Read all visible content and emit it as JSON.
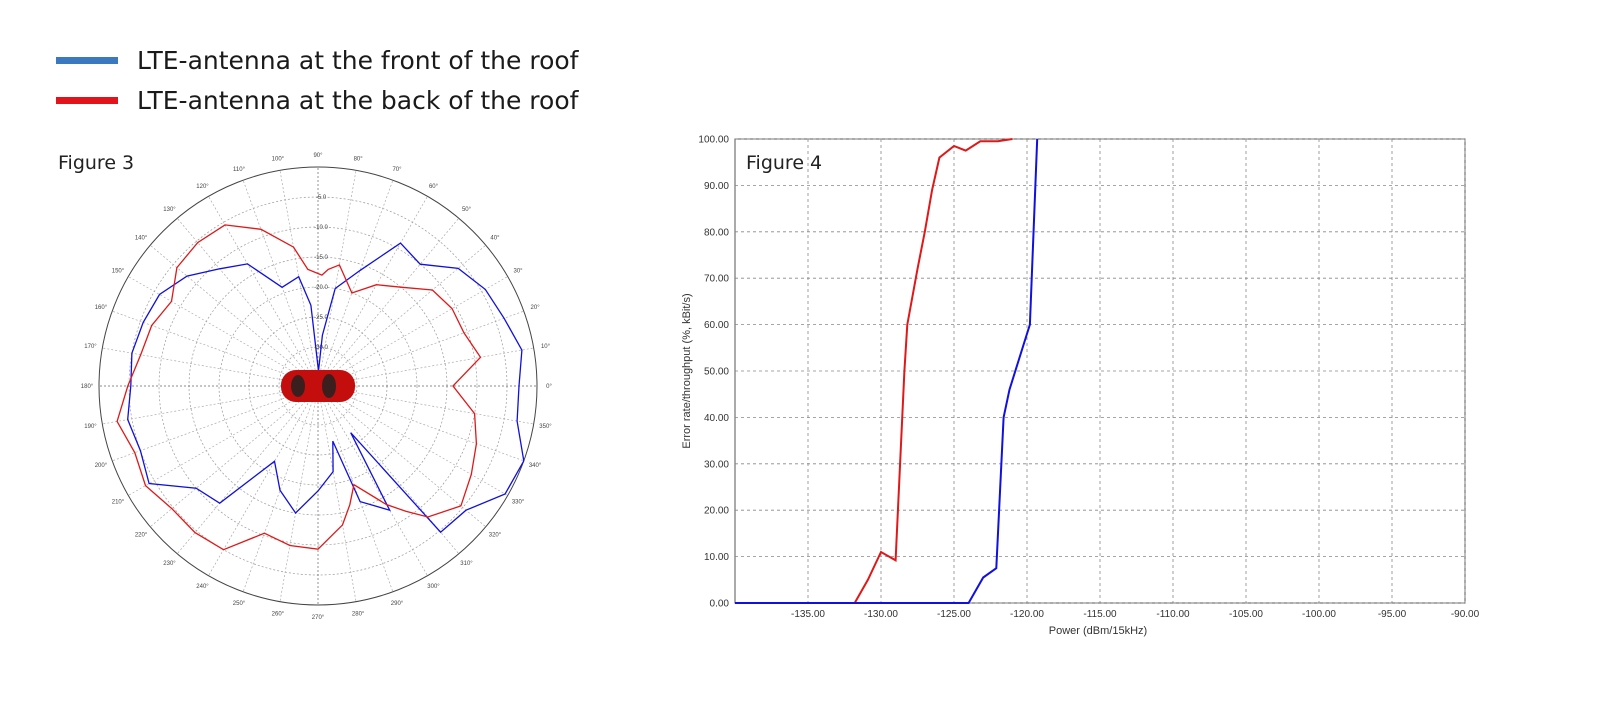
{
  "legend": {
    "items": [
      {
        "label": "LTE-antenna at the front of the roof",
        "color": "#3a78c0"
      },
      {
        "label": "LTE-antenna at the back of the roof",
        "color": "#e3131b"
      }
    ]
  },
  "chart_data": [
    {
      "type": "polar-line",
      "title": "Figure 3",
      "angle_unit": "degrees",
      "angle_ticks": [
        "0°",
        "10°",
        "20°",
        "30°",
        "40°",
        "50°",
        "60°",
        "70°",
        "80°",
        "90°",
        "100°",
        "110°",
        "120°",
        "130°",
        "140°",
        "150°",
        "160°",
        "170°",
        "180°",
        "190°",
        "200°",
        "210°",
        "220°",
        "230°",
        "240°",
        "250°",
        "260°",
        "270°",
        "280°",
        "290°",
        "300°",
        "310°",
        "320°",
        "330°",
        "340°",
        "350°"
      ],
      "radial_ticks": [
        "-5.0",
        "-10.0",
        "-15.0",
        "-20.0",
        "-25.0",
        "-30.0"
      ],
      "radial_range": [
        -36.5,
        0
      ],
      "grid": true,
      "center_image": "red car, top view, facing right (0°)",
      "angles": [
        0,
        10,
        20,
        30,
        40,
        50,
        60,
        70,
        80,
        85,
        88,
        95,
        100,
        110,
        120,
        130,
        140,
        150,
        160,
        170,
        180,
        190,
        200,
        210,
        220,
        230,
        240,
        250,
        260,
        270,
        280,
        285,
        290,
        300,
        305,
        310,
        320,
        330,
        340,
        350
      ],
      "series": [
        {
          "color": "#1010e0",
          "values": [
            -3,
            -2,
            -3.5,
            -4.3,
            -6,
            -10,
            -9,
            -16,
            -20,
            -28,
            -34,
            -23,
            -18,
            -19,
            -13,
            -11,
            -8,
            -6,
            -5.5,
            -5,
            -5.3,
            -4.3,
            -5,
            -4,
            -10,
            -11,
            -22,
            -18,
            -15,
            -19,
            -22,
            -27,
            -16,
            -12.6,
            -27,
            -4.7,
            -4.3,
            -0.5,
            0,
            -2.8
          ]
        },
        {
          "color": "#e01818",
          "values": [
            -14,
            -9,
            -10.6,
            -10.7,
            -11.6,
            -15,
            -17,
            -20,
            -16,
            -17,
            -18,
            -17,
            -13,
            -8.7,
            -5.5,
            -5.3,
            -5.8,
            -8.3,
            -7,
            -6.5,
            -4.8,
            -2.5,
            -4,
            -3.3,
            -4.7,
            -4.6,
            -5,
            -10.4,
            -9.5,
            -9.3,
            -13,
            -16,
            -19,
            -13.7,
            -11,
            -8,
            -5.4,
            -7,
            -8.4,
            -10
          ]
        }
      ]
    },
    {
      "type": "line",
      "title": "Figure 4",
      "xlabel": "Power (dBm/15kHz)",
      "ylabel": "Error rate/throughput (%, kBit/s)",
      "xlim": [
        -140,
        -90
      ],
      "ylim": [
        0,
        100
      ],
      "xticks": [
        -135,
        -130,
        -125,
        -120,
        -115,
        -110,
        -105,
        -100,
        -95,
        -90
      ],
      "xtick_labels": [
        "-135.00",
        "-130.00",
        "-125.00",
        "-120.00",
        "-115.00",
        "-110.00",
        "-105.00",
        "-100.00",
        "-95.00",
        "-90.00"
      ],
      "yticks": [
        0,
        10,
        20,
        30,
        40,
        50,
        60,
        70,
        80,
        90,
        100
      ],
      "ytick_labels": [
        "0.00",
        "10.00",
        "20.00",
        "30.00",
        "40.00",
        "50.00",
        "60.00",
        "70.00",
        "80.00",
        "90.00",
        "100.00"
      ],
      "grid": true,
      "series": [
        {
          "color": "#e01818",
          "x": [
            -140,
            -131.8,
            -130.9,
            -130,
            -129,
            -128.4,
            -128.2,
            -127.5,
            -127,
            -126.5,
            -126,
            -125,
            -124.2,
            -123.2,
            -122,
            -121
          ],
          "y": [
            0,
            0,
            5,
            11,
            9.2,
            50,
            60,
            72,
            80,
            89,
            96,
            98.5,
            97.5,
            99.5,
            99.5,
            100
          ]
        },
        {
          "color": "#1010e0",
          "x": [
            -140,
            -124,
            -123,
            -122.1,
            -121.6,
            -121.2,
            -120.1,
            -119.8,
            -119.3
          ],
          "y": [
            0,
            0,
            5.5,
            7.5,
            40,
            46,
            57,
            60,
            100
          ]
        }
      ]
    }
  ]
}
